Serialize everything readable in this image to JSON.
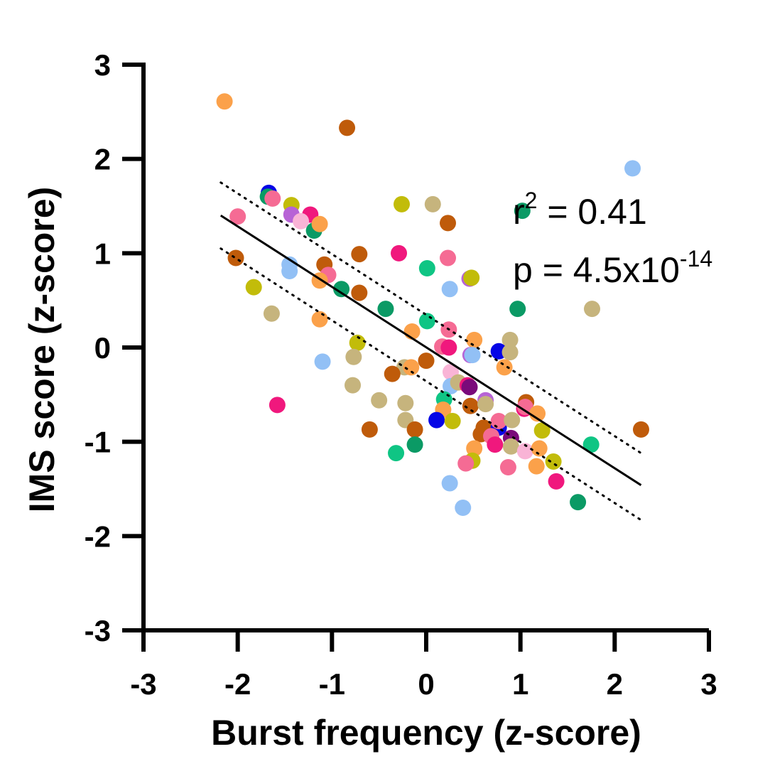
{
  "chart_data": {
    "type": "scatter",
    "xlabel": "Burst frequency (z-score)",
    "ylabel": "IMS score (z-score)",
    "xlim": [
      -3,
      3
    ],
    "ylim": [
      -3,
      3
    ],
    "x_ticks": [
      "-3",
      "-2",
      "-1",
      "0",
      "1",
      "2",
      "3"
    ],
    "y_ticks": [
      "3",
      "2",
      "1",
      "0",
      "-1",
      "-2",
      "-3"
    ],
    "grid": false,
    "legend": "none",
    "annotations": {
      "r2_prefix": "r",
      "r2_sup": "2",
      "r2_rest": " = 0.41",
      "p_prefix": "p = 4.5x10",
      "p_sup": "-14"
    },
    "regression": {
      "x": [
        -2.18,
        2.28
      ],
      "y": [
        1.4,
        -1.46
      ],
      "ci_upper": {
        "x": [
          -2.18,
          2.28
        ],
        "y": [
          1.75,
          -1.12
        ]
      },
      "ci_lower": {
        "x": [
          -2.18,
          2.28
        ],
        "y": [
          1.05,
          -1.83
        ]
      }
    },
    "points": [
      {
        "x": -2.14,
        "y": 2.61,
        "color": "#FBA14A"
      },
      {
        "x": -0.84,
        "y": 2.33,
        "color": "#BF5B0A"
      },
      {
        "x": 2.19,
        "y": 1.9,
        "color": "#92C0F5"
      },
      {
        "x": -1.67,
        "y": 1.64,
        "color": "#0505E6"
      },
      {
        "x": -1.68,
        "y": 1.6,
        "color": "#0B9A65"
      },
      {
        "x": -1.63,
        "y": 1.58,
        "color": "#F56B94"
      },
      {
        "x": -1.43,
        "y": 1.51,
        "color": "#C2BC0A"
      },
      {
        "x": -1.43,
        "y": 1.41,
        "color": "#B763D6"
      },
      {
        "x": -1.23,
        "y": 1.41,
        "color": "#F0187D"
      },
      {
        "x": -1.33,
        "y": 1.34,
        "color": "#F9B4D6"
      },
      {
        "x": -1.19,
        "y": 1.24,
        "color": "#0B9A65"
      },
      {
        "x": -1.13,
        "y": 1.31,
        "color": "#FBA14A"
      },
      {
        "x": -2.0,
        "y": 1.39,
        "color": "#F56B94"
      },
      {
        "x": -0.26,
        "y": 1.52,
        "color": "#C2BC0A"
      },
      {
        "x": 0.07,
        "y": 1.52,
        "color": "#C6B47D"
      },
      {
        "x": 0.23,
        "y": 1.32,
        "color": "#BF5B0A"
      },
      {
        "x": 1.02,
        "y": 1.45,
        "color": "#0B9A65"
      },
      {
        "x": -2.02,
        "y": 0.95,
        "color": "#BF5B0A"
      },
      {
        "x": -1.45,
        "y": 0.88,
        "color": "#92C0F5"
      },
      {
        "x": -1.45,
        "y": 0.81,
        "color": "#92C0F5"
      },
      {
        "x": -1.08,
        "y": 0.88,
        "color": "#BF5B0A"
      },
      {
        "x": -1.04,
        "y": 0.77,
        "color": "#F56B94"
      },
      {
        "x": -1.13,
        "y": 0.71,
        "color": "#FBA14A"
      },
      {
        "x": -0.71,
        "y": 0.99,
        "color": "#BF5B0A"
      },
      {
        "x": -0.29,
        "y": 1.0,
        "color": "#F0187D"
      },
      {
        "x": 0.23,
        "y": 0.95,
        "color": "#F56B94"
      },
      {
        "x": 0.01,
        "y": 0.84,
        "color": "#0FC584"
      },
      {
        "x": -1.83,
        "y": 0.64,
        "color": "#C2BC0A"
      },
      {
        "x": -0.9,
        "y": 0.62,
        "color": "#0B9A65"
      },
      {
        "x": -0.71,
        "y": 0.58,
        "color": "#BF5B0A"
      },
      {
        "x": 0.46,
        "y": 0.73,
        "color": "#B763D6"
      },
      {
        "x": 0.48,
        "y": 0.74,
        "color": "#C2BC0A"
      },
      {
        "x": 0.25,
        "y": 0.62,
        "color": "#92C0F5"
      },
      {
        "x": -1.64,
        "y": 0.36,
        "color": "#C6B47D"
      },
      {
        "x": -1.13,
        "y": 0.3,
        "color": "#FBA14A"
      },
      {
        "x": -0.43,
        "y": 0.41,
        "color": "#0B9A65"
      },
      {
        "x": 0.97,
        "y": 0.41,
        "color": "#0B9A65"
      },
      {
        "x": 1.76,
        "y": 0.41,
        "color": "#C6B47D"
      },
      {
        "x": 0.01,
        "y": 0.28,
        "color": "#0FC584"
      },
      {
        "x": -0.15,
        "y": 0.17,
        "color": "#FBA14A"
      },
      {
        "x": 0.24,
        "y": 0.19,
        "color": "#F56B94"
      },
      {
        "x": -0.73,
        "y": 0.05,
        "color": "#C2BC0A"
      },
      {
        "x": 0.51,
        "y": 0.08,
        "color": "#FBA14A"
      },
      {
        "x": 0.89,
        "y": 0.08,
        "color": "#C6B47D"
      },
      {
        "x": 0.17,
        "y": 0.01,
        "color": "#F56B94"
      },
      {
        "x": 0.24,
        "y": 0.0,
        "color": "#F0187D"
      },
      {
        "x": 0.47,
        "y": -0.08,
        "color": "#B763D6"
      },
      {
        "x": 0.49,
        "y": -0.08,
        "color": "#92C0F5"
      },
      {
        "x": 0.77,
        "y": -0.04,
        "color": "#0505E6"
      },
      {
        "x": 0.89,
        "y": -0.05,
        "color": "#C6B47D"
      },
      {
        "x": -1.1,
        "y": -0.15,
        "color": "#92C0F5"
      },
      {
        "x": -0.77,
        "y": -0.1,
        "color": "#C6B47D"
      },
      {
        "x": 0.0,
        "y": -0.14,
        "color": "#BF5B0A"
      },
      {
        "x": -0.23,
        "y": -0.21,
        "color": "#C6B47D"
      },
      {
        "x": -0.16,
        "y": -0.21,
        "color": "#FBA14A"
      },
      {
        "x": -0.36,
        "y": -0.28,
        "color": "#BF5B0A"
      },
      {
        "x": 0.83,
        "y": -0.21,
        "color": "#FBA14A"
      },
      {
        "x": 0.26,
        "y": -0.26,
        "color": "#F9B4D6"
      },
      {
        "x": -0.78,
        "y": -0.4,
        "color": "#C6B47D"
      },
      {
        "x": 0.26,
        "y": -0.41,
        "color": "#92C0F5"
      },
      {
        "x": 0.34,
        "y": -0.37,
        "color": "#C6B47D"
      },
      {
        "x": 0.44,
        "y": -0.4,
        "color": "#F0187D"
      },
      {
        "x": 0.46,
        "y": -0.42,
        "color": "#7A0A7A"
      },
      {
        "x": -0.5,
        "y": -0.56,
        "color": "#C6B47D"
      },
      {
        "x": -0.22,
        "y": -0.59,
        "color": "#C6B47D"
      },
      {
        "x": 0.19,
        "y": -0.55,
        "color": "#0FC584"
      },
      {
        "x": 0.47,
        "y": -0.62,
        "color": "#BF5B0A"
      },
      {
        "x": 0.63,
        "y": -0.56,
        "color": "#B763D6"
      },
      {
        "x": 0.63,
        "y": -0.6,
        "color": "#C6B47D"
      },
      {
        "x": 1.06,
        "y": -0.58,
        "color": "#BF5B0A"
      },
      {
        "x": 1.04,
        "y": -0.65,
        "color": "#F0187D"
      },
      {
        "x": 1.05,
        "y": -0.63,
        "color": "#F56B94"
      },
      {
        "x": 1.18,
        "y": -0.7,
        "color": "#FBA14A"
      },
      {
        "x": -1.58,
        "y": -0.61,
        "color": "#F0187D"
      },
      {
        "x": 0.18,
        "y": -0.66,
        "color": "#FBA14A"
      },
      {
        "x": -0.22,
        "y": -0.77,
        "color": "#C6B47D"
      },
      {
        "x": 0.11,
        "y": -0.77,
        "color": "#0505E6"
      },
      {
        "x": 0.28,
        "y": -0.78,
        "color": "#C2BC0A"
      },
      {
        "x": 0.61,
        "y": -0.85,
        "color": "#BF5B0A"
      },
      {
        "x": 0.77,
        "y": -0.85,
        "color": "#0505E6"
      },
      {
        "x": 0.77,
        "y": -0.78,
        "color": "#F56B94"
      },
      {
        "x": 0.91,
        "y": -0.77,
        "color": "#C6B47D"
      },
      {
        "x": -0.6,
        "y": -0.87,
        "color": "#BF5B0A"
      },
      {
        "x": -0.12,
        "y": -0.87,
        "color": "#BF5B0A"
      },
      {
        "x": 0.58,
        "y": -0.92,
        "color": "#BF5B0A"
      },
      {
        "x": 0.69,
        "y": -0.94,
        "color": "#F56B94"
      },
      {
        "x": 0.9,
        "y": -0.96,
        "color": "#7A0A7A"
      },
      {
        "x": 1.23,
        "y": -0.88,
        "color": "#C2BC0A"
      },
      {
        "x": 1.75,
        "y": -1.03,
        "color": "#0FC584"
      },
      {
        "x": 2.28,
        "y": -0.87,
        "color": "#BF5B0A"
      },
      {
        "x": -0.12,
        "y": -1.03,
        "color": "#0B9A65"
      },
      {
        "x": 0.73,
        "y": -1.03,
        "color": "#F0187D"
      },
      {
        "x": 0.9,
        "y": -1.05,
        "color": "#C6B47D"
      },
      {
        "x": 1.05,
        "y": -1.1,
        "color": "#F9B4D6"
      },
      {
        "x": 1.2,
        "y": -1.07,
        "color": "#FBA14A"
      },
      {
        "x": 0.51,
        "y": -1.07,
        "color": "#FBA14A"
      },
      {
        "x": -0.32,
        "y": -1.12,
        "color": "#0FC584"
      },
      {
        "x": 0.49,
        "y": -1.2,
        "color": "#C2BC0A"
      },
      {
        "x": 0.42,
        "y": -1.23,
        "color": "#F56B94"
      },
      {
        "x": 0.87,
        "y": -1.27,
        "color": "#F56B94"
      },
      {
        "x": 1.17,
        "y": -1.26,
        "color": "#FBA14A"
      },
      {
        "x": 1.35,
        "y": -1.21,
        "color": "#C2BC0A"
      },
      {
        "x": 0.25,
        "y": -1.44,
        "color": "#92C0F5"
      },
      {
        "x": 1.38,
        "y": -1.42,
        "color": "#F0187D"
      },
      {
        "x": 0.39,
        "y": -1.7,
        "color": "#92C0F5"
      },
      {
        "x": 1.61,
        "y": -1.64,
        "color": "#0B9A65"
      }
    ]
  }
}
